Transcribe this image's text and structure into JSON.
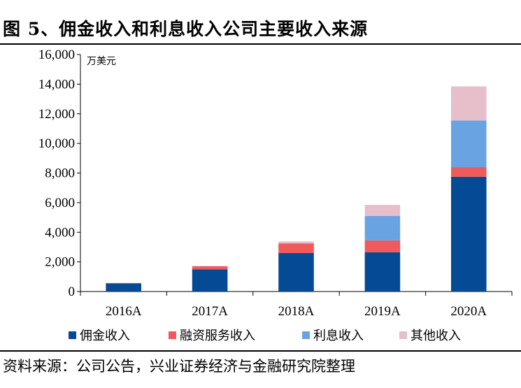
{
  "header": {
    "title": "图 5、佣金收入和利息收入公司主要收入来源"
  },
  "footer": {
    "source": "资料来源：公司公告，兴业证券经济与金融研究院整理"
  },
  "chart_data": {
    "type": "bar",
    "stacked": true,
    "unit_label": "万美元",
    "categories": [
      "2016A",
      "2017A",
      "2018A",
      "2019A",
      "2020A"
    ],
    "ylim": [
      0,
      16000
    ],
    "yticks": [
      0,
      2000,
      4000,
      6000,
      8000,
      10000,
      12000,
      14000,
      16000
    ],
    "ytick_labels": [
      "0",
      "2,000",
      "4,000",
      "6,000",
      "8,000",
      "10,000",
      "12,000",
      "14,000",
      "16,000"
    ],
    "legend_position": "bottom",
    "grid": false,
    "series": [
      {
        "name": "佣金收入",
        "color": "#054A94",
        "values": [
          550,
          1500,
          2600,
          2650,
          7750
        ]
      },
      {
        "name": "融资服务收入",
        "color": "#EF5A5A",
        "values": [
          20,
          200,
          650,
          800,
          650
        ]
      },
      {
        "name": "利息收入",
        "color": "#6AA3E2",
        "values": [
          0,
          0,
          0,
          1650,
          3150
        ]
      },
      {
        "name": "其他收入",
        "color": "#E6BFCB",
        "values": [
          20,
          30,
          130,
          750,
          2300
        ]
      }
    ]
  }
}
